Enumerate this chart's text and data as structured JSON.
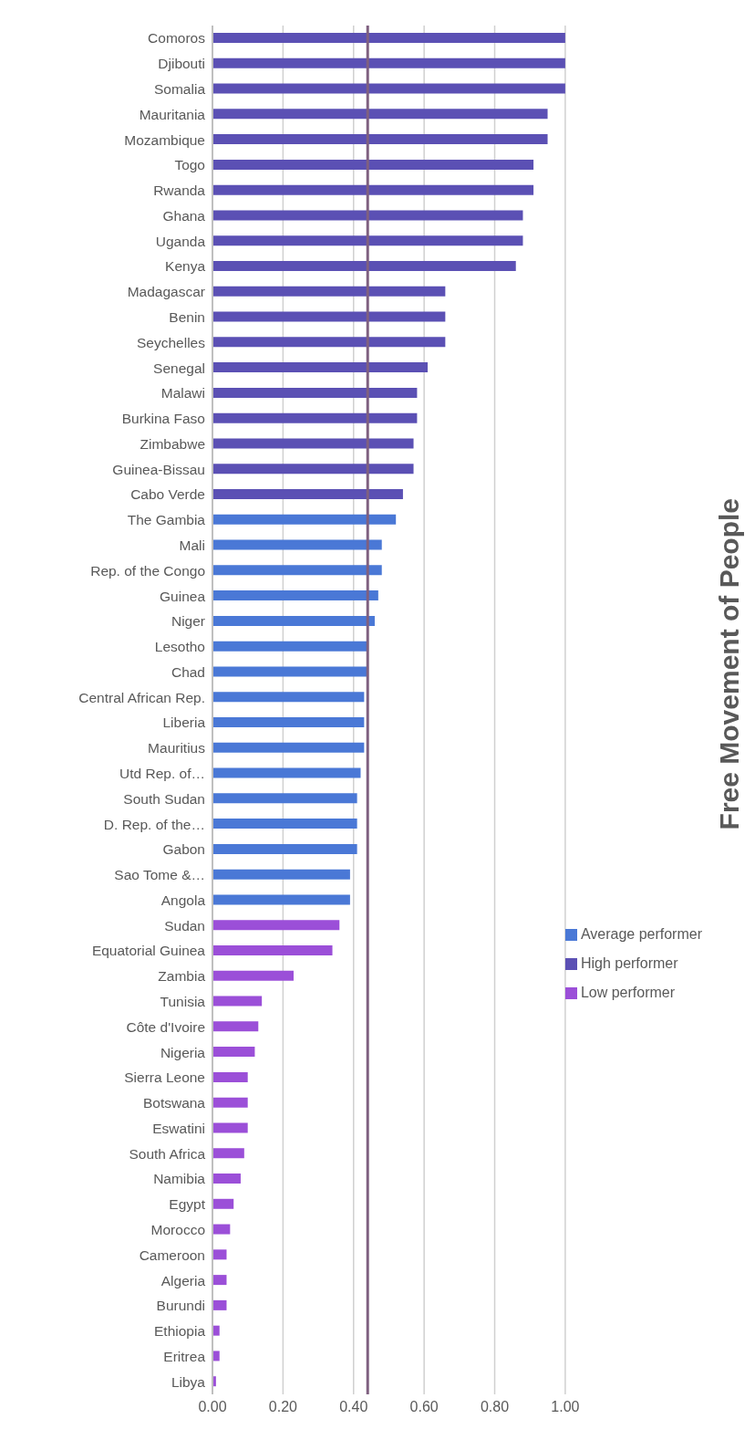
{
  "chart_data": {
    "type": "bar",
    "orientation": "horizontal",
    "stacked": true,
    "title": "Free Movement of People",
    "categories": [
      "Comoros",
      "Djibouti",
      "Somalia",
      "Mauritania",
      "Mozambique",
      "Togo",
      "Rwanda",
      "Ghana",
      "Uganda",
      "Kenya",
      "Madagascar",
      "Benin",
      "Seychelles",
      "Senegal",
      "Malawi",
      "Burkina Faso",
      "Zimbabwe",
      "Guinea-Bissau",
      "Cabo Verde",
      "The Gambia",
      "Mali",
      "Rep. of the Congo",
      "Guinea",
      "Niger",
      "Lesotho",
      "Chad",
      "Central African Rep.",
      "Liberia",
      "Mauritius",
      "Utd Rep. of…",
      "South Sudan",
      "D. Rep. of the…",
      "Gabon",
      "Sao Tome &…",
      "Angola",
      "Sudan",
      "Equatorial Guinea",
      "Zambia",
      "Tunisia",
      "Côte d'Ivoire",
      "Nigeria",
      "Sierra Leone",
      "Botswana",
      "Eswatini",
      "South Africa",
      "Namibia",
      "Egypt",
      "Morocco",
      "Cameroon",
      "Algeria",
      "Burundi",
      "Ethiopia",
      "Eritrea",
      "Libya"
    ],
    "series": [
      {
        "name": "Low performer",
        "color": "#9b4fd8",
        "values": [
          null,
          null,
          null,
          null,
          null,
          null,
          null,
          null,
          null,
          null,
          null,
          null,
          null,
          null,
          null,
          null,
          null,
          null,
          null,
          null,
          null,
          null,
          null,
          null,
          null,
          null,
          null,
          null,
          null,
          null,
          null,
          null,
          null,
          null,
          null,
          0.36,
          0.34,
          0.23,
          0.14,
          0.13,
          0.12,
          0.1,
          0.1,
          0.1,
          0.09,
          0.08,
          0.06,
          0.05,
          0.04,
          0.04,
          0.04,
          0.02,
          0.02,
          0.01
        ]
      },
      {
        "name": "High performer",
        "color": "#5b50b4",
        "values": [
          1.0,
          1.0,
          1.0,
          0.95,
          0.95,
          0.91,
          0.91,
          0.88,
          0.88,
          0.86,
          0.66,
          0.66,
          0.66,
          0.61,
          0.58,
          0.58,
          0.57,
          0.57,
          0.54,
          null,
          null,
          null,
          null,
          null,
          null,
          null,
          null,
          null,
          null,
          null,
          null,
          null,
          null,
          null,
          null,
          null,
          null,
          null,
          null,
          null,
          null,
          null,
          null,
          null,
          null,
          null,
          null,
          null,
          null,
          null,
          null,
          null,
          null,
          null
        ]
      },
      {
        "name": "Average performer",
        "color": "#4a78d6",
        "values": [
          null,
          null,
          null,
          null,
          null,
          null,
          null,
          null,
          null,
          null,
          null,
          null,
          null,
          null,
          null,
          null,
          null,
          null,
          null,
          0.52,
          0.48,
          0.48,
          0.47,
          0.46,
          0.44,
          0.44,
          0.43,
          0.43,
          0.43,
          0.42,
          0.41,
          0.41,
          0.41,
          0.39,
          0.39,
          null,
          null,
          null,
          null,
          null,
          null,
          null,
          null,
          null,
          null,
          null,
          null,
          null,
          null,
          null,
          null,
          null,
          null,
          null
        ]
      }
    ],
    "xlim": [
      0,
      1
    ],
    "xticks": [
      {
        "value": 0,
        "label": "0.00"
      },
      {
        "value": 0.2,
        "label": "0.20"
      },
      {
        "value": 0.4,
        "label": "0.40"
      },
      {
        "value": 0.6,
        "label": "0.60"
      },
      {
        "value": 0.8,
        "label": "0.80"
      },
      {
        "value": 1,
        "label": "1.00"
      }
    ],
    "ref_lines": [
      {
        "axis": "x",
        "value": 0.44,
        "color": "#7f6080"
      }
    ],
    "grid": "x",
    "legend": "right"
  }
}
